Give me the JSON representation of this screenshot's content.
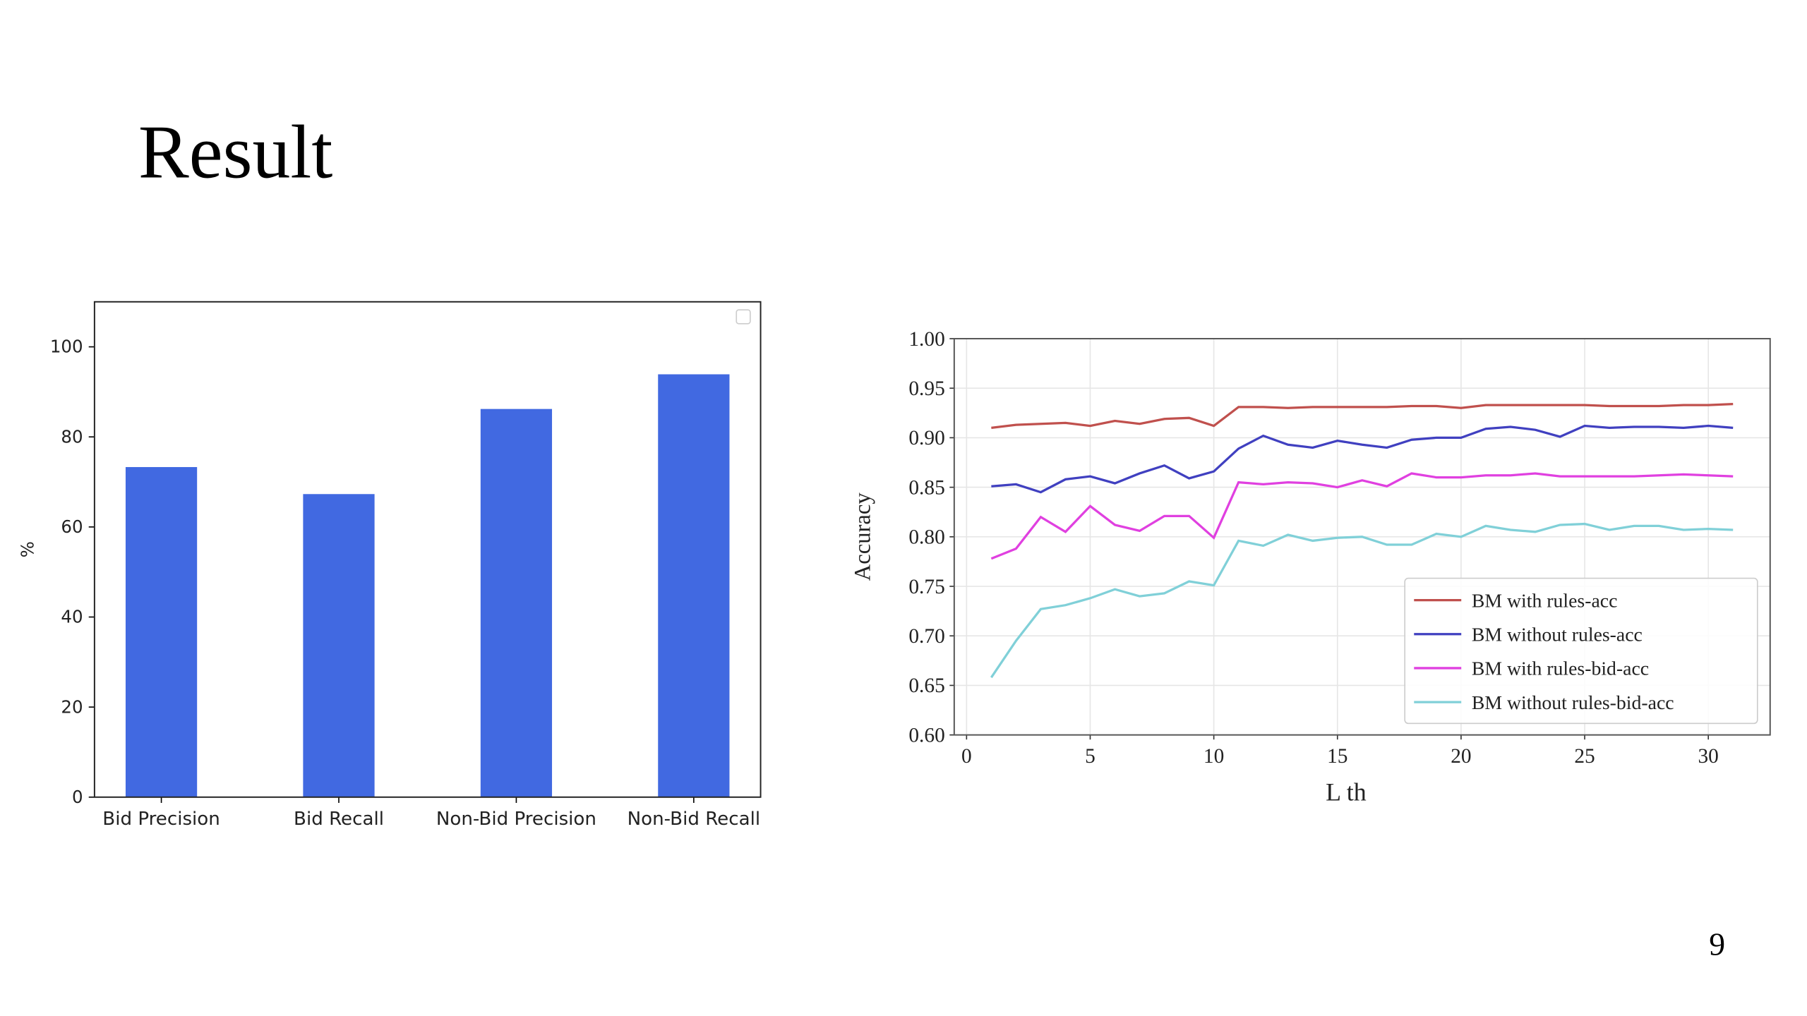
{
  "title": "Result",
  "page_number": "9",
  "chart_data": [
    {
      "type": "bar",
      "categories": [
        "Bid Precision",
        "Bid Recall",
        "Non-Bid Precision",
        "Non-Bid Recall"
      ],
      "values": [
        73.3,
        67.3,
        86.2,
        93.9
      ],
      "color": "#4169e1",
      "y_label": "%",
      "ylim": [
        0,
        110
      ],
      "yticks": [
        0,
        20,
        40,
        60,
        80,
        100
      ],
      "grid": false
    },
    {
      "type": "line",
      "x_label": "L th",
      "y_label": "Accuracy",
      "grid": true,
      "legend": "lower right",
      "x": [
        1,
        2,
        3,
        4,
        5,
        6,
        7,
        8,
        9,
        10,
        11,
        12,
        13,
        14,
        15,
        16,
        17,
        18,
        19,
        20,
        21,
        22,
        23,
        24,
        25,
        26,
        27,
        28,
        29,
        30,
        31
      ],
      "xlim": [
        -0.5,
        32.5
      ],
      "xticks": [
        0,
        5,
        10,
        15,
        20,
        25,
        30
      ],
      "ylim": [
        0.6,
        1.0
      ],
      "yticks": [
        {
          "value": 0.6,
          "label": "0.60"
        },
        0.65,
        {
          "value": 0.7,
          "label": "0.70"
        },
        0.75,
        {
          "value": 0.8,
          "label": "0.80"
        },
        0.85,
        {
          "value": 0.9,
          "label": "0.90"
        },
        0.95,
        {
          "value": 1.0,
          "label": "1.00"
        }
      ],
      "series": [
        {
          "name": "BM with rules-acc",
          "color": "#c0504d",
          "values": [
            0.91,
            0.913,
            0.914,
            0.915,
            0.912,
            0.917,
            0.914,
            0.919,
            0.92,
            0.912,
            0.931,
            0.931,
            0.93,
            0.931,
            0.931,
            0.931,
            0.931,
            0.932,
            0.932,
            0.93,
            0.933,
            0.933,
            0.933,
            0.933,
            0.933,
            0.932,
            0.932,
            0.932,
            0.933,
            0.933,
            0.934
          ]
        },
        {
          "name": "BM without rules-acc",
          "color": "#4040c0",
          "values": [
            0.851,
            0.853,
            0.845,
            0.858,
            0.861,
            0.854,
            0.864,
            0.872,
            0.859,
            0.866,
            0.889,
            0.902,
            0.893,
            0.89,
            0.897,
            0.893,
            0.89,
            0.898,
            0.9,
            0.9,
            0.909,
            0.911,
            0.908,
            0.901,
            0.912,
            0.91,
            0.911,
            0.911,
            0.91,
            0.912,
            0.91
          ]
        },
        {
          "name": "BM with rules-bid-acc",
          "color": "#e040e0",
          "values": [
            0.778,
            0.788,
            0.82,
            0.805,
            0.831,
            0.812,
            0.806,
            0.821,
            0.821,
            0.799,
            0.855,
            0.853,
            0.855,
            0.854,
            0.85,
            0.857,
            0.851,
            0.864,
            0.86,
            0.86,
            0.862,
            0.862,
            0.864,
            0.861,
            0.861,
            0.861,
            0.861,
            0.862,
            0.863,
            0.862,
            0.861
          ]
        },
        {
          "name": "BM without rules-bid-acc",
          "color": "#80d0d8",
          "values": [
            0.658,
            0.695,
            0.727,
            0.731,
            0.738,
            0.747,
            0.74,
            0.743,
            0.755,
            0.751,
            0.796,
            0.791,
            0.802,
            0.796,
            0.799,
            0.8,
            0.792,
            0.792,
            0.803,
            0.8,
            0.811,
            0.807,
            0.805,
            0.812,
            0.813,
            0.807,
            0.811,
            0.811,
            0.807,
            0.808,
            0.807
          ]
        }
      ]
    }
  ]
}
